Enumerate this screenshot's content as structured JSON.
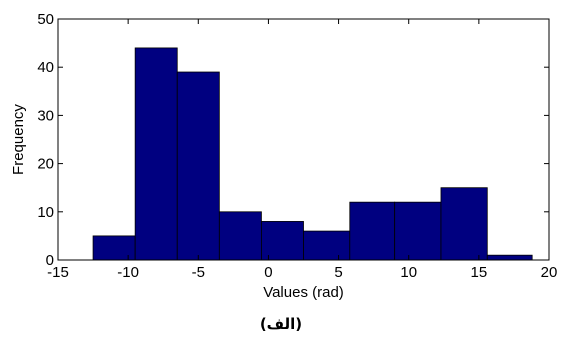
{
  "chart_data": {
    "type": "bar",
    "subtype": "histogram",
    "bins": [
      {
        "x0": -12.5,
        "x1": -9.5,
        "value": 5
      },
      {
        "x0": -9.5,
        "x1": -6.5,
        "value": 44
      },
      {
        "x0": -6.5,
        "x1": -3.5,
        "value": 39
      },
      {
        "x0": -3.5,
        "x1": -0.5,
        "value": 10
      },
      {
        "x0": -0.5,
        "x1": 2.5,
        "value": 8
      },
      {
        "x0": 2.5,
        "x1": 5.8,
        "value": 6
      },
      {
        "x0": 5.8,
        "x1": 9.0,
        "value": 12
      },
      {
        "x0": 9.0,
        "x1": 12.3,
        "value": 12
      },
      {
        "x0": 12.3,
        "x1": 15.6,
        "value": 15
      },
      {
        "x0": 15.6,
        "x1": 18.8,
        "value": 1
      }
    ],
    "xlabel": "Values (rad)",
    "ylabel": "Frequency",
    "xlim": [
      -15,
      20
    ],
    "ylim": [
      0,
      50
    ],
    "xticks": [
      -15,
      -10,
      -5,
      0,
      5,
      10,
      15,
      20
    ],
    "yticks": [
      0,
      10,
      20,
      30,
      40,
      50
    ],
    "bar_color": "#000080",
    "edge_color": "#000000",
    "grid": false,
    "caption": "(الف)"
  }
}
